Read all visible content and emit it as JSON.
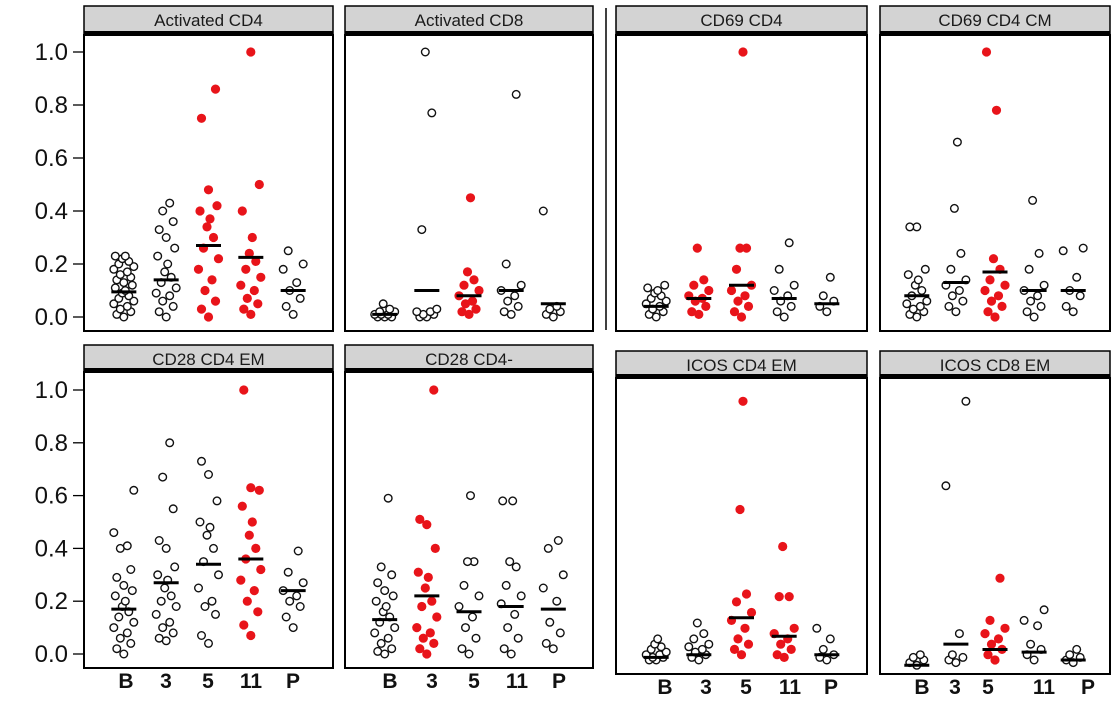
{
  "colors": {
    "highlight": "#e8141a",
    "open_marker": "#111111",
    "strip_fill": "#d3d3d3",
    "median_bar": "#000000"
  },
  "chart_data": {
    "type": "scatter",
    "layout": "faceted dot plot, 2 rows x 4 panels",
    "categories": [
      "B",
      "3",
      "5",
      "11",
      "P"
    ],
    "y_ticks": [
      "0.0",
      "0.2",
      "0.4",
      "0.6",
      "0.8",
      "1.0"
    ],
    "ylim": [
      0,
      1.0
    ],
    "grid": false,
    "legend": "none",
    "marker_note": "open black circles; filled red circles mark highlighted groups; horizontal bar = median",
    "panels": [
      {
        "title": "Activated CD4",
        "highlighted": [
          "5",
          "11"
        ],
        "medians": [
          0.095,
          0.14,
          0.27,
          0.225,
          0.1
        ],
        "points": [
          [
            0.0,
            0.01,
            0.02,
            0.03,
            0.04,
            0.05,
            0.06,
            0.07,
            0.08,
            0.09,
            0.1,
            0.11,
            0.12,
            0.13,
            0.14,
            0.15,
            0.16,
            0.17,
            0.18,
            0.19,
            0.2,
            0.21,
            0.22,
            0.23,
            0.23
          ],
          [
            0.0,
            0.02,
            0.04,
            0.06,
            0.08,
            0.09,
            0.11,
            0.13,
            0.15,
            0.17,
            0.2,
            0.23,
            0.26,
            0.3,
            0.33,
            0.36,
            0.4,
            0.43
          ],
          [
            0.0,
            0.03,
            0.06,
            0.1,
            0.14,
            0.18,
            0.22,
            0.26,
            0.3,
            0.34,
            0.37,
            0.4,
            0.42,
            0.48,
            0.75,
            0.86
          ],
          [
            0.01,
            0.03,
            0.05,
            0.07,
            0.1,
            0.12,
            0.15,
            0.18,
            0.21,
            0.24,
            0.3,
            0.4,
            0.5,
            1.0
          ],
          [
            0.01,
            0.04,
            0.07,
            0.1,
            0.13,
            0.18,
            0.2,
            0.25
          ]
        ]
      },
      {
        "title": "Activated CD8",
        "highlighted": [
          "5"
        ],
        "medians": [
          0.01,
          0.1,
          0.08,
          0.1,
          0.05
        ],
        "points": [
          [
            0.0,
            0.0,
            0.0,
            0.01,
            0.01,
            0.01,
            0.02,
            0.02,
            0.03,
            0.05
          ],
          [
            0.0,
            0.0,
            0.01,
            0.01,
            0.02,
            0.02,
            0.03,
            0.33,
            0.77,
            1.0
          ],
          [
            0.01,
            0.02,
            0.03,
            0.05,
            0.06,
            0.08,
            0.1,
            0.12,
            0.14,
            0.17,
            0.45
          ],
          [
            0.01,
            0.02,
            0.04,
            0.06,
            0.08,
            0.1,
            0.12,
            0.2,
            0.84
          ],
          [
            0.0,
            0.01,
            0.02,
            0.03,
            0.04,
            0.4
          ]
        ]
      },
      {
        "title": "CD69 CD4",
        "highlighted": [
          "3",
          "5"
        ],
        "medians": [
          0.04,
          0.07,
          0.12,
          0.07,
          0.05
        ],
        "points": [
          [
            0.0,
            0.01,
            0.02,
            0.03,
            0.04,
            0.05,
            0.06,
            0.07,
            0.08,
            0.09,
            0.1,
            0.11,
            0.12
          ],
          [
            0.01,
            0.02,
            0.04,
            0.06,
            0.07,
            0.08,
            0.1,
            0.12,
            0.14,
            0.26
          ],
          [
            0.0,
            0.02,
            0.04,
            0.06,
            0.08,
            0.1,
            0.12,
            0.18,
            0.26,
            0.26,
            1.0
          ],
          [
            0.0,
            0.02,
            0.04,
            0.06,
            0.08,
            0.1,
            0.12,
            0.18,
            0.28
          ],
          [
            0.02,
            0.04,
            0.06,
            0.08,
            0.15
          ]
        ]
      },
      {
        "title": "CD69 CD4 CM",
        "highlighted": [
          "5"
        ],
        "medians": [
          0.08,
          0.13,
          0.17,
          0.1,
          0.1
        ],
        "points": [
          [
            0.0,
            0.01,
            0.02,
            0.03,
            0.04,
            0.05,
            0.06,
            0.08,
            0.1,
            0.12,
            0.14,
            0.16,
            0.18,
            0.34,
            0.34
          ],
          [
            0.02,
            0.04,
            0.06,
            0.08,
            0.1,
            0.12,
            0.14,
            0.18,
            0.24,
            0.41,
            0.66
          ],
          [
            0.0,
            0.02,
            0.04,
            0.06,
            0.08,
            0.1,
            0.12,
            0.14,
            0.18,
            0.22,
            0.78,
            1.0
          ],
          [
            0.0,
            0.02,
            0.04,
            0.06,
            0.08,
            0.1,
            0.12,
            0.18,
            0.24,
            0.44
          ],
          [
            0.02,
            0.04,
            0.08,
            0.1,
            0.15,
            0.25,
            0.26
          ]
        ]
      },
      {
        "title": "CD28 CD4 EM",
        "highlighted": [
          "11"
        ],
        "medians": [
          0.17,
          0.27,
          0.34,
          0.36,
          0.24
        ],
        "points": [
          [
            0.0,
            0.02,
            0.04,
            0.06,
            0.08,
            0.1,
            0.12,
            0.14,
            0.16,
            0.18,
            0.2,
            0.22,
            0.24,
            0.26,
            0.29,
            0.32,
            0.4,
            0.41,
            0.46,
            0.62
          ],
          [
            0.05,
            0.06,
            0.08,
            0.1,
            0.12,
            0.15,
            0.18,
            0.2,
            0.22,
            0.25,
            0.28,
            0.3,
            0.33,
            0.4,
            0.43,
            0.55,
            0.67,
            0.8
          ],
          [
            0.04,
            0.07,
            0.15,
            0.18,
            0.2,
            0.25,
            0.3,
            0.35,
            0.4,
            0.45,
            0.48,
            0.5,
            0.58,
            0.68,
            0.73
          ],
          [
            0.07,
            0.11,
            0.16,
            0.2,
            0.24,
            0.28,
            0.32,
            0.36,
            0.4,
            0.45,
            0.5,
            0.56,
            0.62,
            0.63,
            1.0
          ],
          [
            0.1,
            0.14,
            0.18,
            0.2,
            0.22,
            0.24,
            0.27,
            0.31,
            0.39
          ]
        ]
      },
      {
        "title": "CD28 CD4-",
        "highlighted": [
          "3"
        ],
        "medians": [
          0.13,
          0.22,
          0.16,
          0.18,
          0.17
        ],
        "points": [
          [
            0.0,
            0.01,
            0.02,
            0.04,
            0.06,
            0.08,
            0.1,
            0.12,
            0.14,
            0.16,
            0.18,
            0.2,
            0.22,
            0.24,
            0.27,
            0.3,
            0.33,
            0.59
          ],
          [
            0.0,
            0.02,
            0.04,
            0.06,
            0.08,
            0.1,
            0.14,
            0.18,
            0.2,
            0.25,
            0.29,
            0.31,
            0.4,
            0.49,
            0.51,
            1.0
          ],
          [
            0.0,
            0.02,
            0.06,
            0.1,
            0.14,
            0.18,
            0.22,
            0.26,
            0.35,
            0.35,
            0.6
          ],
          [
            0.0,
            0.02,
            0.06,
            0.1,
            0.15,
            0.19,
            0.22,
            0.26,
            0.33,
            0.35,
            0.58,
            0.58
          ],
          [
            0.02,
            0.04,
            0.08,
            0.12,
            0.2,
            0.25,
            0.3,
            0.4,
            0.43
          ]
        ]
      },
      {
        "title": "ICOS CD4 EM",
        "highlighted": [
          "5",
          "11"
        ],
        "medians": [
          0.01,
          0.02,
          0.16,
          0.09,
          0.02
        ],
        "points": [
          [
            0.0,
            0.0,
            0.01,
            0.01,
            0.02,
            0.02,
            0.03,
            0.04,
            0.05,
            0.06,
            0.08
          ],
          [
            0.0,
            0.01,
            0.02,
            0.03,
            0.04,
            0.05,
            0.06,
            0.08,
            0.1,
            0.14
          ],
          [
            0.02,
            0.04,
            0.06,
            0.08,
            0.12,
            0.15,
            0.18,
            0.22,
            0.25,
            0.57,
            0.98
          ],
          [
            0.01,
            0.02,
            0.04,
            0.06,
            0.08,
            0.1,
            0.12,
            0.24,
            0.24,
            0.43
          ],
          [
            0.0,
            0.01,
            0.02,
            0.04,
            0.08,
            0.12
          ]
        ]
      },
      {
        "title": "ICOS CD8 EM",
        "highlighted": [
          "5"
        ],
        "medians": [
          -0.02,
          0.06,
          0.04,
          0.03,
          0.0
        ],
        "points": [
          [
            -0.02,
            -0.01,
            0.0,
            0.01,
            0.02
          ],
          [
            -0.01,
            0.0,
            0.01,
            0.02,
            0.1,
            0.66,
            0.98
          ],
          [
            0.0,
            0.02,
            0.04,
            0.06,
            0.08,
            0.1,
            0.12,
            0.15,
            0.31
          ],
          [
            0.0,
            0.02,
            0.04,
            0.06,
            0.13,
            0.15,
            0.19
          ],
          [
            -0.01,
            0.0,
            0.01,
            0.02,
            0.04
          ]
        ]
      }
    ]
  }
}
